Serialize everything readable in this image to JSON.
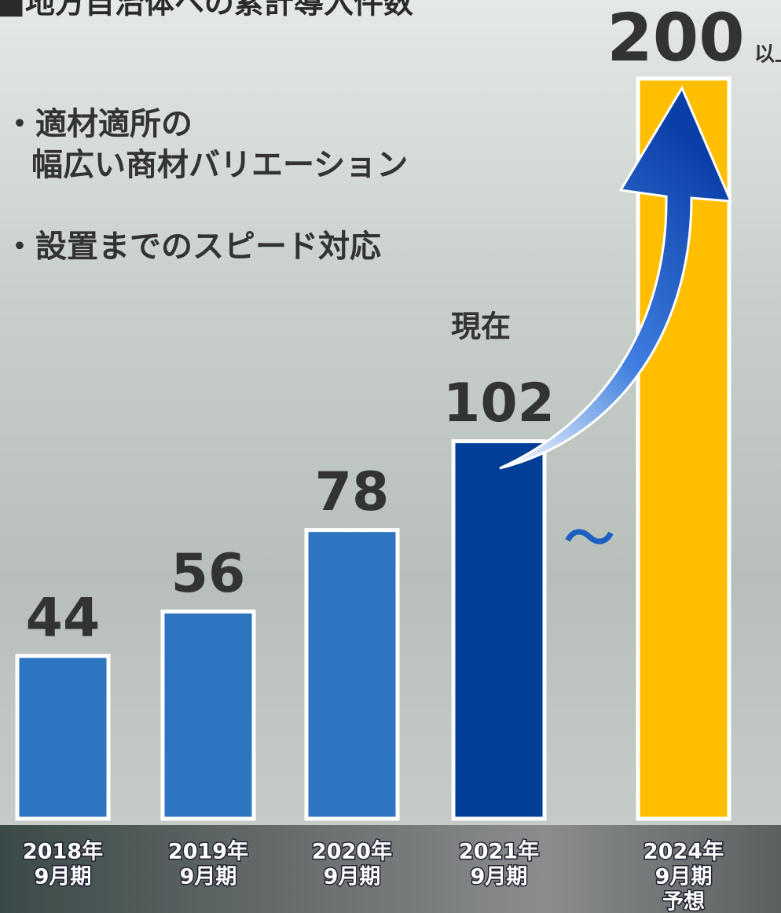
{
  "chart_data": {
    "type": "bar",
    "title": "■地方自治体への累計導入件数",
    "bullets": [
      "・適材適所の",
      "幅広い商材バリエーション",
      "・設置までのスピード対応"
    ],
    "categories": [
      [
        "2018年",
        "9月期"
      ],
      [
        "2019年",
        "9月期"
      ],
      [
        "2020年",
        "9月期"
      ],
      [
        "2021年",
        "9月期"
      ],
      [
        "2024年",
        "9月期",
        "予想"
      ]
    ],
    "values": [
      44,
      56,
      78,
      102,
      200
    ],
    "colors": [
      "#2e75c0",
      "#2e75c0",
      "#2e75c0",
      "#003e98",
      "#ffbf00"
    ],
    "annotations": {
      "current": "現在",
      "more_than": "以上",
      "tilde": "〜"
    }
  }
}
